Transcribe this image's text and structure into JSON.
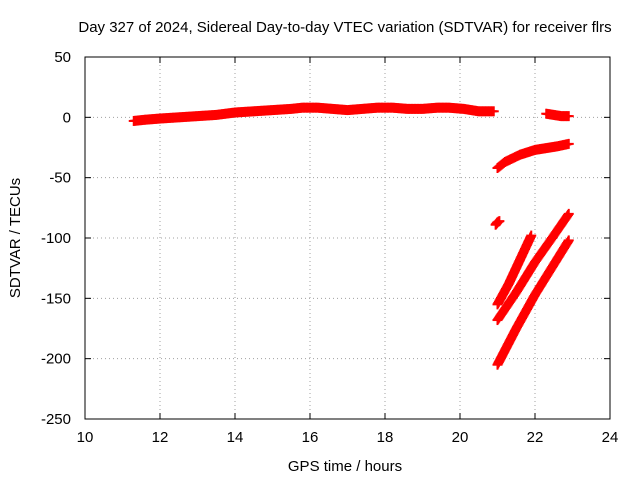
{
  "chart_data": {
    "type": "scatter",
    "title": "Day 327 of 2024, Sidereal Day-to-day VTEC variation (SDTVAR) for receiver flrs",
    "xlabel": "GPS time / hours",
    "ylabel": "SDTVAR / TECUs",
    "xlim": [
      10,
      24
    ],
    "ylim": [
      -250,
      50
    ],
    "xticks": [
      10,
      12,
      14,
      16,
      18,
      20,
      22,
      24
    ],
    "yticks": [
      -250,
      -200,
      -150,
      -100,
      -50,
      0,
      50
    ],
    "grid": true,
    "legend": "none",
    "marker": "plus",
    "color": "#ff0000",
    "series": [
      {
        "x": [
          11.3,
          11.6,
          12.0,
          12.5,
          13.0,
          13.5,
          14.0,
          14.5,
          15.0,
          15.5,
          15.8,
          16.2,
          16.6,
          17.0,
          17.4,
          17.8,
          18.2,
          18.6,
          19.0,
          19.4,
          19.7,
          20.1,
          20.5,
          20.9
        ],
        "y": [
          -3,
          -2,
          -1,
          0,
          1,
          2,
          4,
          5,
          6,
          7,
          8,
          8,
          7,
          6,
          7,
          8,
          8,
          7,
          7,
          8,
          8,
          7,
          5,
          5
        ]
      },
      {
        "x": [
          22.3,
          22.5,
          22.7,
          22.9
        ],
        "y": [
          3,
          2,
          1,
          1
        ]
      },
      {
        "x": [
          21.0,
          21.2,
          21.4,
          21.6,
          21.8,
          22.0,
          22.2,
          22.4,
          22.6,
          22.9
        ],
        "y": [
          -42,
          -37,
          -34,
          -31,
          -29,
          -27,
          -26,
          -25,
          -24,
          -22
        ]
      },
      {
        "x": [
          20.95,
          21.0,
          21.05
        ],
        "y": [
          -89,
          -87,
          -86
        ]
      },
      {
        "x": [
          21.0,
          21.3,
          21.6,
          21.9
        ],
        "y": [
          -155,
          -138,
          -118,
          -98
        ]
      },
      {
        "x": [
          21.0,
          21.5,
          22.0,
          22.5,
          22.9
        ],
        "y": [
          -168,
          -145,
          -120,
          -98,
          -80
        ]
      },
      {
        "x": [
          21.0,
          21.5,
          22.0,
          22.5,
          22.9
        ],
        "y": [
          -205,
          -175,
          -147,
          -122,
          -102
        ]
      }
    ]
  }
}
